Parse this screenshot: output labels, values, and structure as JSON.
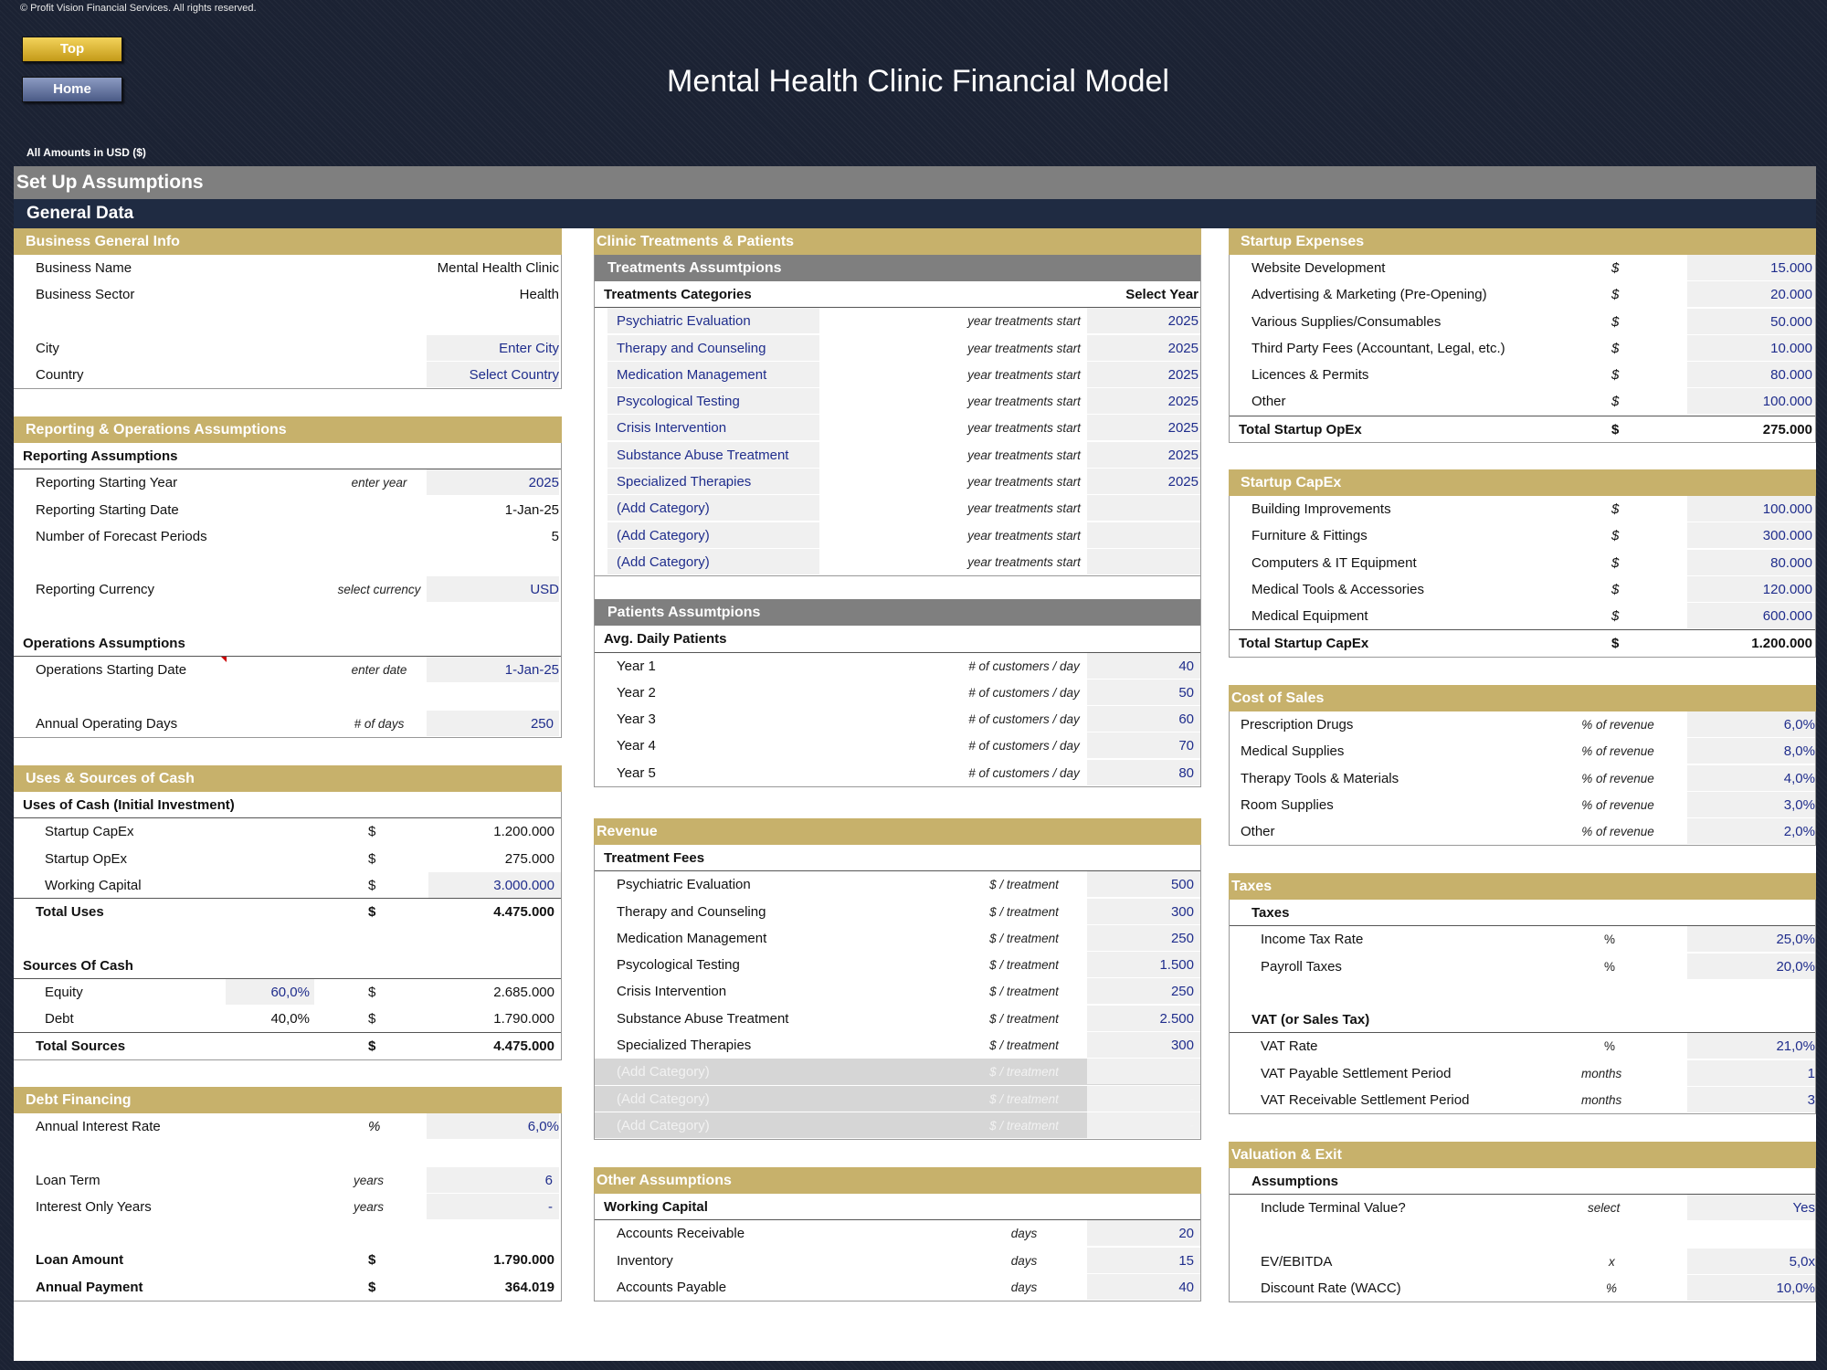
{
  "header": {
    "copyright": "© Profit Vision Financial Services. All rights reserved.",
    "top_button": "Top",
    "home_button": "Home",
    "title": "Mental Health Clinic Financial Model",
    "amounts_note": "All Amounts in  USD ($)"
  },
  "bands": {
    "setup": "Set Up Assumptions",
    "general": "General Data"
  },
  "business": {
    "title": "Business General Info",
    "name_label": "Business Name",
    "name_value": "Mental Health Clinic",
    "sector_label": "Business Sector",
    "sector_value": "Health",
    "city_label": "City",
    "city_value": "Enter City",
    "country_label": "Country",
    "country_value": "Select Country"
  },
  "reporting": {
    "title": "Reporting & Operations Assumptions",
    "rep_sub": "Reporting Assumptions",
    "start_year_label": "Reporting Starting Year",
    "start_year_unit": "enter year",
    "start_year_value": "2025",
    "start_date_label": "Reporting Starting Date",
    "start_date_value": "1-Jan-25",
    "periods_label": "Number of Forecast Periods",
    "periods_value": "5",
    "currency_label": "Reporting Currency",
    "currency_unit": "select currency",
    "currency_value": "USD",
    "ops_sub": "Operations Assumptions",
    "ops_date_label": "Operations Starting Date",
    "ops_date_unit": "enter date",
    "ops_date_value": "1-Jan-25",
    "op_days_label": "Annual Operating Days",
    "op_days_unit": "# of days",
    "op_days_value": "250"
  },
  "uses": {
    "title": "Uses & Sources of Cash",
    "uses_sub": "Uses of Cash (Initial Investment)",
    "capex_label": "Startup CapEx",
    "capex_unit": "$",
    "capex_value": "1.200.000",
    "opex_label": "Startup OpEx",
    "opex_unit": "$",
    "opex_value": "275.000",
    "wc_label": "Working Capital",
    "wc_unit": "$",
    "wc_value": "3.000.000",
    "total_uses_label": "Total Uses",
    "total_uses_unit": "$",
    "total_uses_value": "4.475.000",
    "sources_sub": "Sources Of Cash",
    "equity_label": "Equity",
    "equity_pct": "60,0%",
    "equity_unit": "$",
    "equity_value": "2.685.000",
    "debt_label": "Debt",
    "debt_pct": "40,0%",
    "debt_unit": "$",
    "debt_value": "1.790.000",
    "total_sources_label": "Total Sources",
    "total_sources_unit": "$",
    "total_sources_value": "4.475.000"
  },
  "debt": {
    "title": "Debt Financing",
    "rate_label": "Annual Interest Rate",
    "rate_unit": "%",
    "rate_value": "6,0%",
    "term_label": "Loan Term",
    "term_unit": "years",
    "term_value": "6",
    "io_label": "Interest Only Years",
    "io_unit": "years",
    "io_value": "-",
    "amount_label": "Loan Amount",
    "amount_unit": "$",
    "amount_value": "1.790.000",
    "payment_label": "Annual Payment",
    "payment_unit": "$",
    "payment_value": "364.019"
  },
  "treatments": {
    "title": "Clinic Treatments & Patients",
    "sub": "Treatments Assumtpions",
    "cat_header": "Treatments Categories",
    "year_header": "Select Year",
    "unit": "year treatments start",
    "items": [
      {
        "label": "Psychiatric Evaluation",
        "year": "2025"
      },
      {
        "label": "Therapy and Counseling",
        "year": "2025"
      },
      {
        "label": "Medication Management",
        "year": "2025"
      },
      {
        "label": "Psycological Testing",
        "year": "2025"
      },
      {
        "label": "Crisis Intervention",
        "year": "2025"
      },
      {
        "label": "Substance Abuse Treatment",
        "year": "2025"
      },
      {
        "label": "Specialized Therapies",
        "year": "2025"
      },
      {
        "label": "(Add Category)",
        "year": ""
      },
      {
        "label": "(Add Category)",
        "year": ""
      },
      {
        "label": "(Add Category)",
        "year": ""
      }
    ]
  },
  "patients": {
    "sub": "Patients Assumtpions",
    "header": "Avg. Daily Patients",
    "unit": "# of customers / day",
    "items": [
      {
        "label": "Year 1",
        "value": "40"
      },
      {
        "label": "Year 2",
        "value": "50"
      },
      {
        "label": "Year 3",
        "value": "60"
      },
      {
        "label": "Year 4",
        "value": "70"
      },
      {
        "label": "Year 5",
        "value": "80"
      }
    ]
  },
  "revenue": {
    "title": "Revenue",
    "sub": "Treatment Fees",
    "unit": "$ / treatment",
    "items": [
      {
        "label": "Psychiatric Evaluation",
        "value": "500"
      },
      {
        "label": "Therapy and Counseling",
        "value": "300"
      },
      {
        "label": "Medication Management",
        "value": "250"
      },
      {
        "label": "Psycological Testing",
        "value": "1.500"
      },
      {
        "label": "Crisis Intervention",
        "value": "250"
      },
      {
        "label": "Substance Abuse Treatment",
        "value": "2.500"
      },
      {
        "label": "Specialized Therapies",
        "value": "300"
      },
      {
        "label": "(Add Category)",
        "value": "-"
      },
      {
        "label": "(Add Category)",
        "value": "-"
      },
      {
        "label": "(Add Category)",
        "value": "-"
      }
    ]
  },
  "other": {
    "title": "Other Assumptions",
    "sub": "Working Capital",
    "items": [
      {
        "label": "Accounts Receivable",
        "unit": "days",
        "value": "20"
      },
      {
        "label": "Inventory",
        "unit": "days",
        "value": "15"
      },
      {
        "label": "Accounts Payable",
        "unit": "days",
        "value": "40"
      }
    ]
  },
  "startup_expenses": {
    "title": "Startup Expenses",
    "items": [
      {
        "label": "Website Development",
        "unit": "$",
        "value": "15.000"
      },
      {
        "label": "Advertising & Marketing (Pre-Opening)",
        "unit": "$",
        "value": "20.000"
      },
      {
        "label": "Various Supplies/Consumables",
        "unit": "$",
        "value": "50.000"
      },
      {
        "label": "Third Party Fees (Accountant, Legal, etc.)",
        "unit": "$",
        "value": "10.000"
      },
      {
        "label": "Licences & Permits",
        "unit": "$",
        "value": "80.000"
      },
      {
        "label": "Other",
        "unit": "$",
        "value": "100.000"
      }
    ],
    "total_label": "Total Startup OpEx",
    "total_unit": "$",
    "total_value": "275.000"
  },
  "startup_capex": {
    "title": "Startup CapEx",
    "items": [
      {
        "label": "Building Improvements",
        "unit": "$",
        "value": "100.000"
      },
      {
        "label": "Furniture & Fittings",
        "unit": "$",
        "value": "300.000"
      },
      {
        "label": "Computers & IT Equipment",
        "unit": "$",
        "value": "80.000"
      },
      {
        "label": "Medical Tools & Accessories",
        "unit": "$",
        "value": "120.000"
      },
      {
        "label": "Medical Equipment",
        "unit": "$",
        "value": "600.000"
      }
    ],
    "total_label": "Total Startup CapEx",
    "total_unit": "$",
    "total_value": "1.200.000"
  },
  "cost_of_sales": {
    "title": "Cost of Sales",
    "unit": "% of revenue",
    "items": [
      {
        "label": "Prescription Drugs",
        "value": "6,0%"
      },
      {
        "label": "Medical Supplies",
        "value": "8,0%"
      },
      {
        "label": "Therapy Tools & Materials",
        "value": "4,0%"
      },
      {
        "label": "Room Supplies",
        "value": "3,0%"
      },
      {
        "label": "Other",
        "value": "2,0%"
      }
    ]
  },
  "taxes": {
    "title": "Taxes",
    "sub": "Taxes",
    "income_label": "Income Tax Rate",
    "income_unit": "%",
    "income_value": "25,0%",
    "payroll_label": "Payroll Taxes",
    "payroll_unit": "%",
    "payroll_value": "20,0%",
    "vat_sub": "VAT (or Sales Tax)",
    "vat_label": "VAT Rate",
    "vat_unit": "%",
    "vat_value": "21,0%",
    "vat_pay_label": "VAT Payable Settlement Period",
    "vat_pay_unit": "months",
    "vat_pay_value": "1",
    "vat_rec_label": "VAT Receivable Settlement Period",
    "vat_rec_unit": "months",
    "vat_rec_value": "3"
  },
  "valuation": {
    "title": "Valuation & Exit",
    "sub": "Assumptions",
    "terminal_label": "Include Terminal Value?",
    "terminal_unit": "select",
    "terminal_value": "Yes",
    "ev_label": "EV/EBITDA",
    "ev_unit": "x",
    "ev_value": "5,0x",
    "wacc_label": "Discount Rate (WACC)",
    "wacc_unit": "%",
    "wacc_value": "10,0%"
  }
}
